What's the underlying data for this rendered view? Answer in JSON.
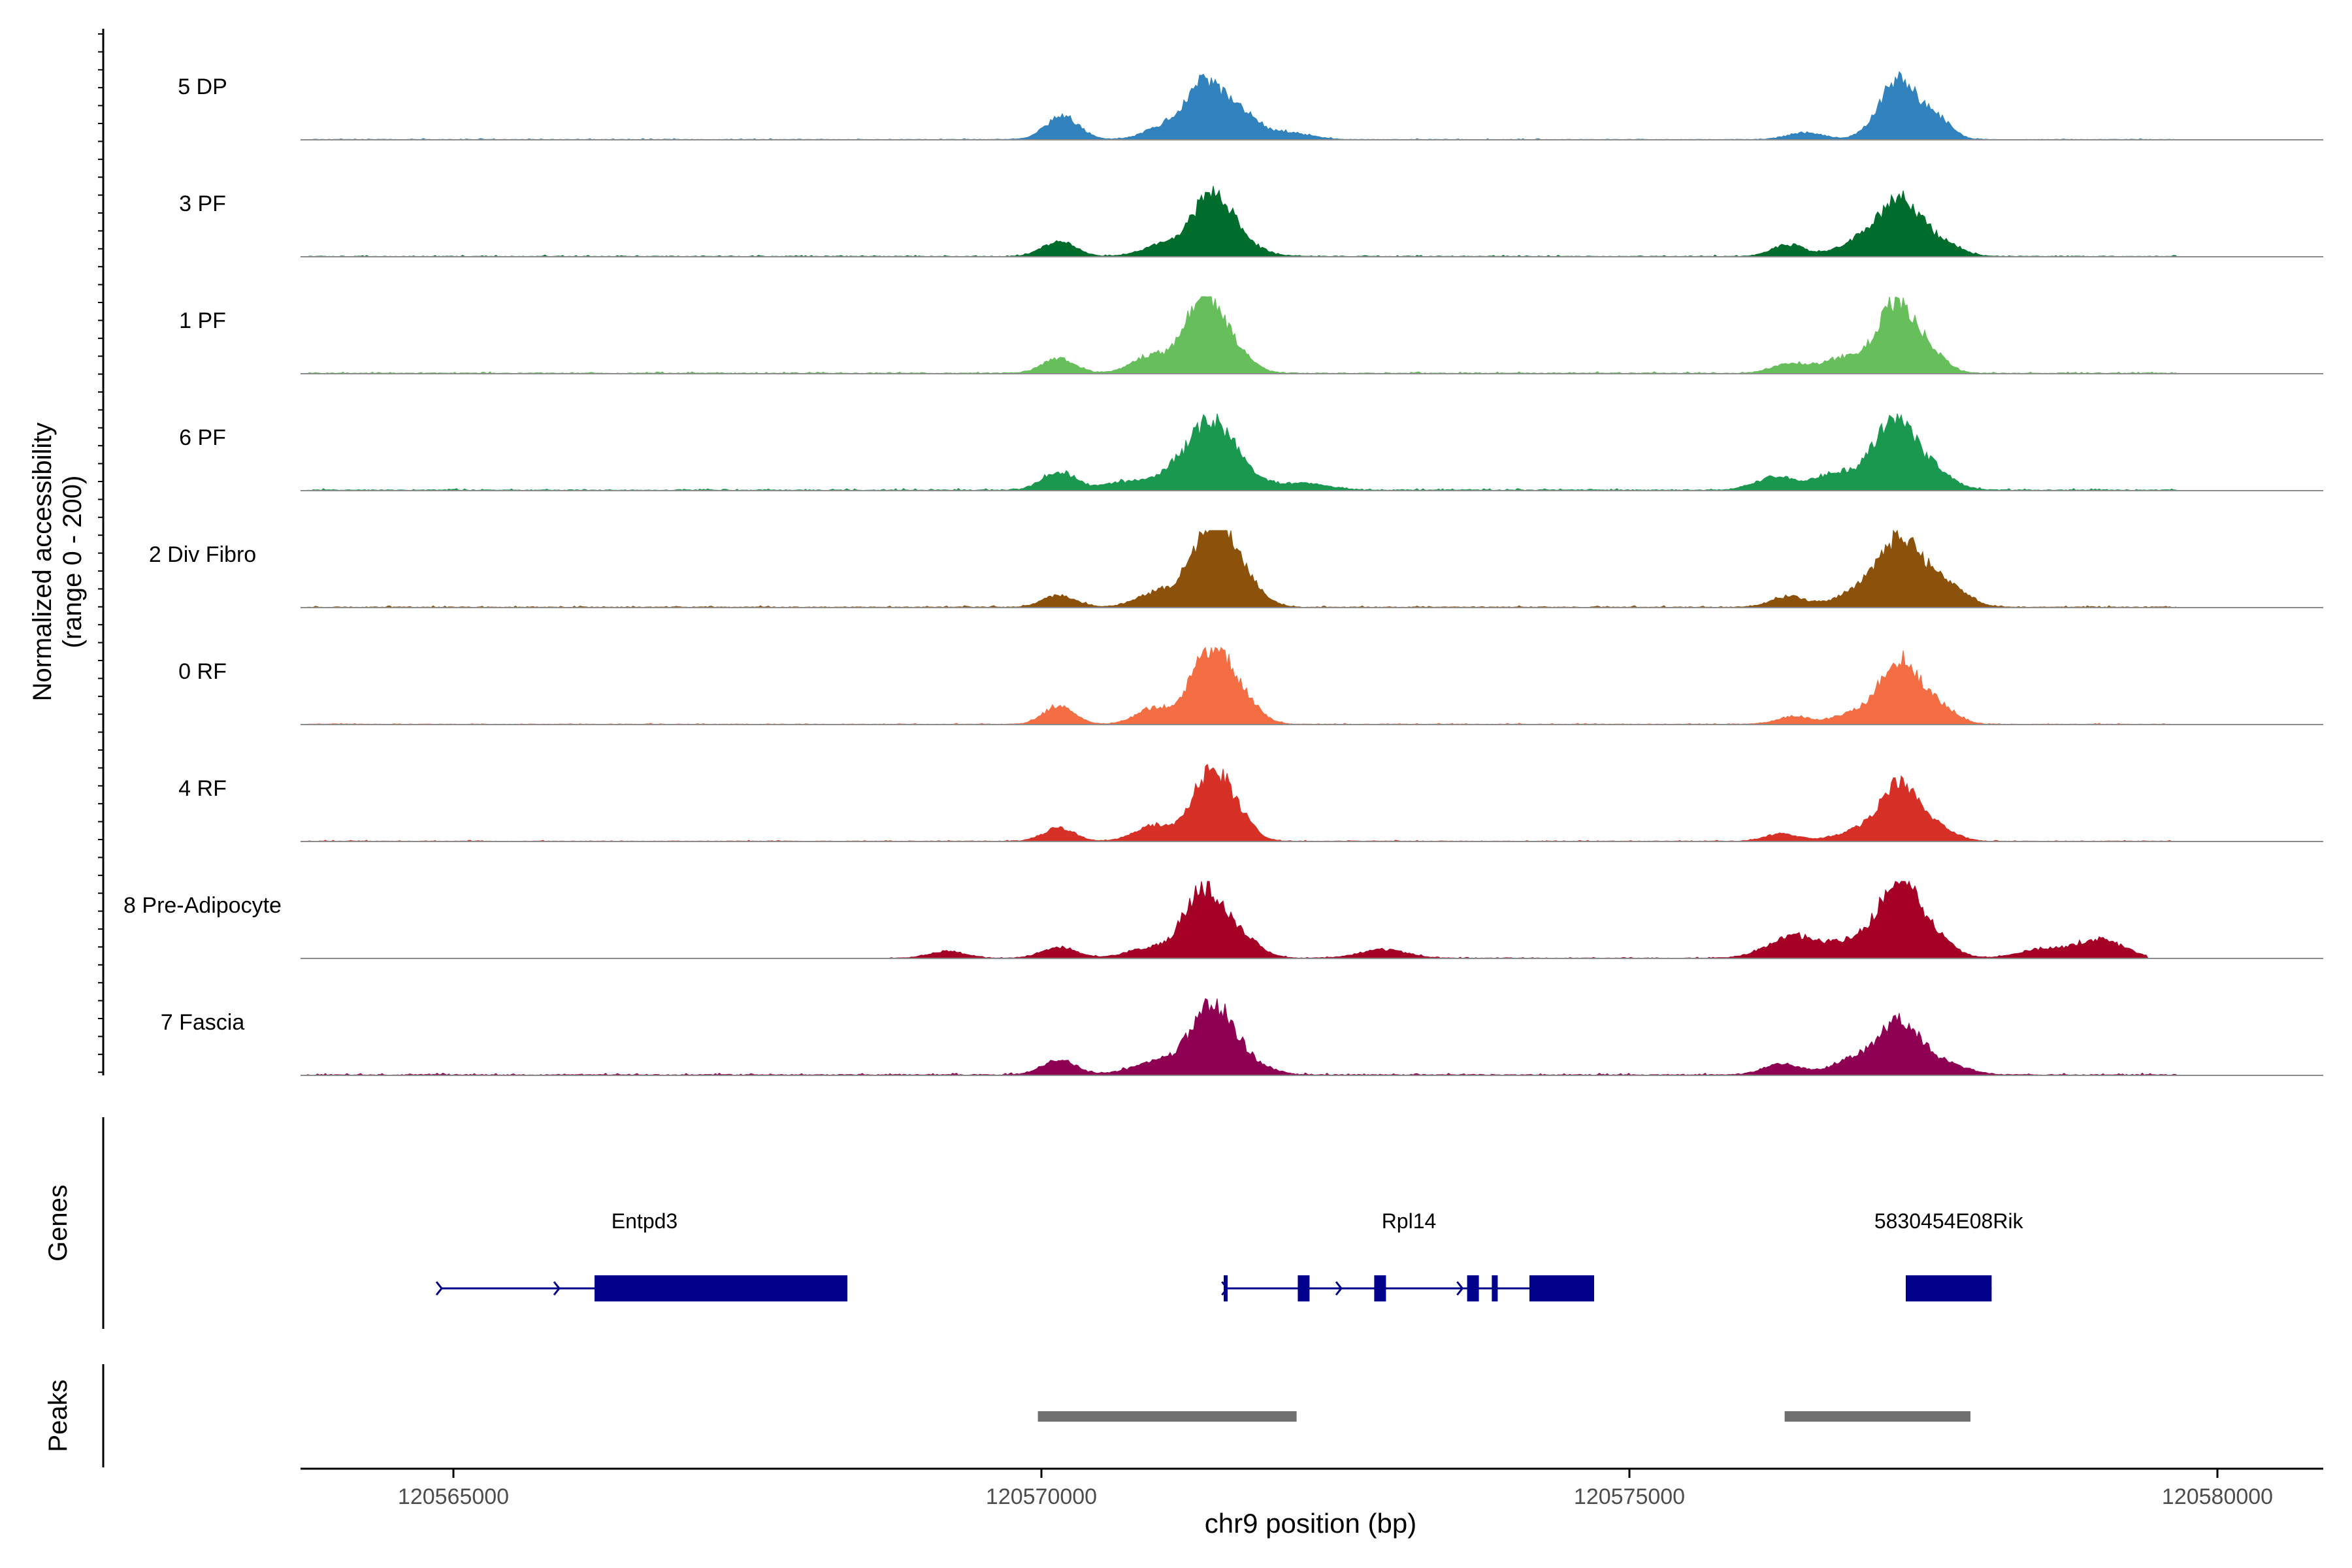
{
  "chart_data": {
    "type": "area",
    "title": "",
    "ylabel_line1": "Normalized accessibility",
    "ylabel_line2": "(range 0 - 200)",
    "xlabel": "chr9 position (bp)",
    "x_range": [
      120563700,
      120580900
    ],
    "y_range": [
      0,
      200
    ],
    "x_ticks": [
      120565000,
      120570000,
      120575000,
      120580000
    ],
    "x_tick_labels": [
      "120565000",
      "120570000",
      "120575000",
      "120580000"
    ],
    "tracks": [
      {
        "name": "5 DP",
        "color": "#3182BD",
        "peaks": [
          [
            120570180,
            60,
            140
          ],
          [
            120571000,
            25,
            150
          ],
          [
            120571400,
            150,
            180
          ],
          [
            120571750,
            45,
            130
          ],
          [
            120572100,
            18,
            180
          ],
          [
            120576500,
            18,
            150
          ],
          [
            120577300,
            158,
            170
          ],
          [
            120577650,
            40,
            110
          ]
        ],
        "noise": 4,
        "range": [
          120563750,
          120579650
        ]
      },
      {
        "name": "3 PF",
        "color": "#006D2C",
        "peaks": [
          [
            120570150,
            38,
            140
          ],
          [
            120571050,
            32,
            180
          ],
          [
            120571450,
            155,
            160
          ],
          [
            120571700,
            30,
            170
          ],
          [
            120576350,
            30,
            140
          ],
          [
            120576900,
            28,
            170
          ],
          [
            120577300,
            148,
            190
          ],
          [
            120577700,
            25,
            140
          ]
        ],
        "noise": 5,
        "range": [
          120563750,
          120579650
        ]
      },
      {
        "name": "1 PF",
        "color": "#67BF5C",
        "peaks": [
          [
            120570150,
            38,
            140
          ],
          [
            120570900,
            42,
            150
          ],
          [
            120571380,
            195,
            170
          ],
          [
            120571650,
            35,
            160
          ],
          [
            120576350,
            25,
            140
          ],
          [
            120576800,
            38,
            170
          ],
          [
            120577280,
            185,
            170
          ],
          [
            120577600,
            30,
            130
          ]
        ],
        "noise": 6,
        "range": [
          120563750,
          120579650
        ]
      },
      {
        "name": "6 PF",
        "color": "#1A9850",
        "peaks": [
          [
            120570150,
            48,
            140
          ],
          [
            120570700,
            20,
            180
          ],
          [
            120571150,
            48,
            170
          ],
          [
            120571450,
            160,
            170
          ],
          [
            120571700,
            35,
            170
          ],
          [
            120572200,
            18,
            220
          ],
          [
            120576250,
            35,
            170
          ],
          [
            120576750,
            42,
            170
          ],
          [
            120577250,
            180,
            180
          ],
          [
            120577600,
            40,
            160
          ]
        ],
        "noise": 7,
        "range": [
          120563750,
          120579650
        ]
      },
      {
        "name": "2 Div Fibro",
        "color": "#8C510A",
        "peaks": [
          [
            120570150,
            30,
            140
          ],
          [
            120571000,
            38,
            180
          ],
          [
            120571450,
            200,
            170
          ],
          [
            120571700,
            65,
            160
          ],
          [
            120576350,
            28,
            150
          ],
          [
            120576900,
            30,
            180
          ],
          [
            120577300,
            175,
            190
          ],
          [
            120577700,
            55,
            170
          ]
        ],
        "noise": 6,
        "range": [
          120563750,
          120579650
        ]
      },
      {
        "name": "0 RF",
        "color": "#F46D43",
        "peaks": [
          [
            120570150,
            48,
            130
          ],
          [
            120570950,
            40,
            150
          ],
          [
            120571450,
            200,
            170
          ],
          [
            120571750,
            40,
            130
          ],
          [
            120576400,
            20,
            140
          ],
          [
            120576900,
            25,
            170
          ],
          [
            120577300,
            165,
            170
          ],
          [
            120577650,
            38,
            140
          ]
        ],
        "noise": 4,
        "range": [
          120563750,
          120579650
        ]
      },
      {
        "name": "4 RF",
        "color": "#D73027",
        "peaks": [
          [
            120570150,
            35,
            130
          ],
          [
            120570950,
            40,
            160
          ],
          [
            120571450,
            185,
            160
          ],
          [
            120571700,
            32,
            130
          ],
          [
            120576300,
            20,
            140
          ],
          [
            120576900,
            22,
            170
          ],
          [
            120577300,
            150,
            170
          ],
          [
            120577650,
            28,
            140
          ]
        ],
        "noise": 4,
        "range": [
          120563750,
          120579650
        ]
      },
      {
        "name": "8 Pre-Adipocyte",
        "color": "#A50026",
        "peaks": [
          [
            120569200,
            18,
            150
          ],
          [
            120570150,
            28,
            150
          ],
          [
            120570900,
            25,
            180
          ],
          [
            120571380,
            175,
            170
          ],
          [
            120571700,
            45,
            160
          ],
          [
            120572900,
            22,
            200
          ],
          [
            120576400,
            55,
            220
          ],
          [
            120576950,
            45,
            200
          ],
          [
            120577300,
            200,
            160
          ],
          [
            120577600,
            45,
            160
          ],
          [
            120578500,
            22,
            200
          ],
          [
            120579000,
            48,
            200
          ]
        ],
        "noise": 4,
        "range": [
          120568700,
          120579400
        ]
      },
      {
        "name": "7 Fascia",
        "color": "#8E0152",
        "peaks": [
          [
            120570150,
            38,
            140
          ],
          [
            120571000,
            35,
            220
          ],
          [
            120571450,
            175,
            170
          ],
          [
            120571750,
            30,
            180
          ],
          [
            120576300,
            28,
            160
          ],
          [
            120576900,
            38,
            180
          ],
          [
            120577300,
            135,
            180
          ],
          [
            120577700,
            25,
            180
          ]
        ],
        "noise": 7,
        "range": [
          120563750,
          120579650
        ]
      }
    ],
    "gene_track": {
      "label": "Genes",
      "color": "#00008B",
      "genes": [
        {
          "name": "Entpd3",
          "start": 120564900,
          "end": 120568350,
          "exons": [
            [
              120566200,
              120568350
            ]
          ],
          "arrows": [
            120564900,
            120565900
          ]
        },
        {
          "name": "Rpl14",
          "start": 120571550,
          "end": 120574700,
          "exons": [
            [
              120571550,
              120571580
            ],
            [
              120572180,
              120572280
            ],
            [
              120572830,
              120572930
            ],
            [
              120573620,
              120573720
            ],
            [
              120573830,
              120573880
            ],
            [
              120574150,
              120574700
            ]
          ],
          "arrows": [
            120571580,
            120572550,
            120573580
          ]
        },
        {
          "name": "5830454E08Rik",
          "start": 120577350,
          "end": 120578080,
          "exons": [
            [
              120577350,
              120578080
            ]
          ],
          "arrows": []
        }
      ]
    },
    "peak_track": {
      "label": "Peaks",
      "color": "#707070",
      "peaks": [
        [
          120569970,
          120572170
        ],
        [
          120576320,
          120577900
        ]
      ]
    }
  }
}
